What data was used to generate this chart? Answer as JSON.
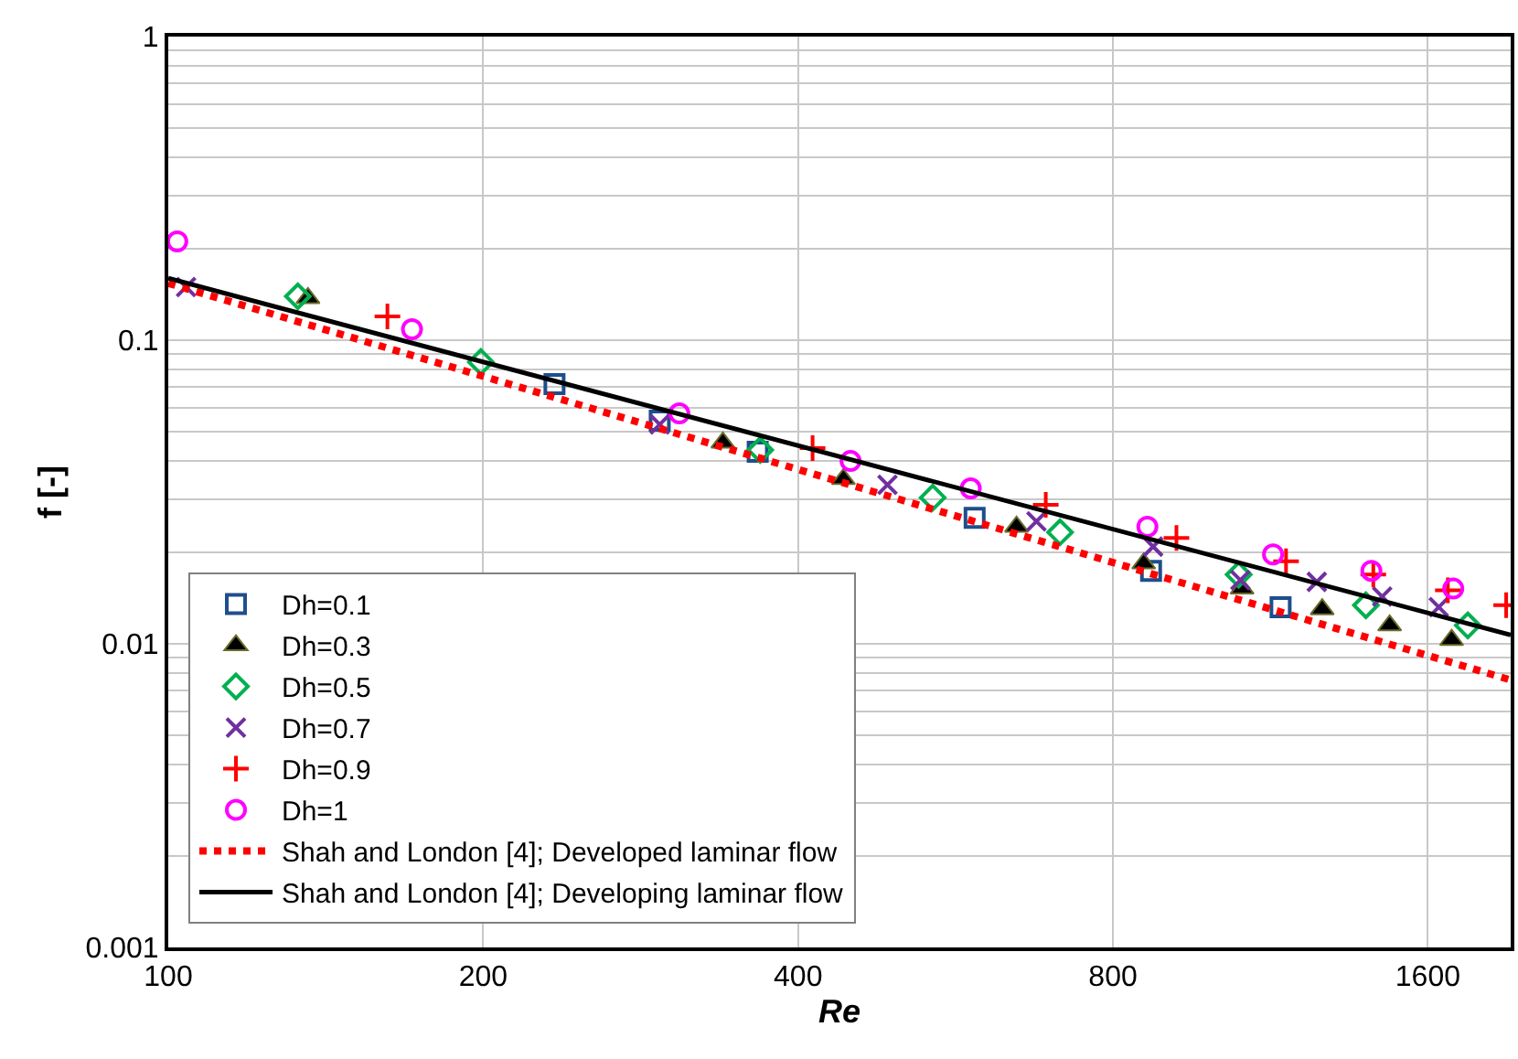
{
  "chart_data": {
    "type": "scatter",
    "xlabel": "Re",
    "ylabel": "f [-]",
    "log": "xy",
    "grid": true,
    "legend": "bottom left",
    "xlim": [
      100,
      1920
    ],
    "xticks": [
      100,
      200,
      400,
      800,
      1600
    ],
    "ylim": [
      0.001,
      1
    ],
    "yticks": [
      0.001,
      {
        "value": 0.002,
        "label": null
      },
      {
        "value": 0.003,
        "label": null
      },
      {
        "value": 0.004,
        "label": null
      },
      {
        "value": 0.005,
        "label": null
      },
      {
        "value": 0.006,
        "label": null
      },
      {
        "value": 0.007,
        "label": null
      },
      {
        "value": 0.008,
        "label": null
      },
      {
        "value": 0.009,
        "label": null
      },
      0.01,
      {
        "value": 0.02,
        "label": null
      },
      {
        "value": 0.03,
        "label": null
      },
      {
        "value": 0.04,
        "label": null
      },
      {
        "value": 0.05,
        "label": null
      },
      {
        "value": 0.06,
        "label": null
      },
      {
        "value": 0.07,
        "label": null
      },
      {
        "value": 0.08,
        "label": null
      },
      {
        "value": 0.09,
        "label": null
      },
      0.1,
      {
        "value": 0.2,
        "label": null
      },
      {
        "value": 0.3,
        "label": null
      },
      {
        "value": 0.4,
        "label": null
      },
      {
        "value": 0.5,
        "label": null
      },
      {
        "value": 0.6,
        "label": null
      },
      {
        "value": 0.7,
        "label": null
      },
      {
        "value": 0.8,
        "label": null
      },
      {
        "value": 0.9,
        "label": null
      },
      1
    ],
    "series": [
      {
        "name": "Dh=0.1",
        "color": "#1f4e8c",
        "marker": "square",
        "x": [
          234,
          295,
          366,
          590,
          870,
          1157
        ],
        "values": [
          0.0717,
          0.0543,
          0.0429,
          0.026,
          0.0174,
          0.0132
        ]
      },
      {
        "name": "Dh=0.3",
        "color": "#000000",
        "marker": "triangle",
        "x": [
          136,
          339,
          442,
          647,
          856,
          1063,
          1268,
          1471,
          1686
        ],
        "values": [
          0.1377,
          0.046,
          0.0349,
          0.0243,
          0.0184,
          0.0152,
          0.013,
          0.0115,
          0.0103
        ]
      },
      {
        "name": "Dh=0.5",
        "color": "#00b050",
        "marker": "diamond",
        "x": [
          133,
          199,
          368,
          538,
          712,
          1055,
          1396,
          1747
        ],
        "values": [
          0.1395,
          0.0847,
          0.0435,
          0.0303,
          0.0233,
          0.0169,
          0.0134,
          0.0115
        ]
      },
      {
        "name": "Dh=0.7",
        "color": "#7030a0",
        "marker": "x",
        "x": [
          104,
          295,
          487,
          676,
          874,
          1059,
          1253,
          1447,
          1639
        ],
        "values": [
          0.1496,
          0.0528,
          0.0334,
          0.0253,
          0.0209,
          0.0162,
          0.016,
          0.0143,
          0.0132
        ]
      },
      {
        "name": "Dh=0.9",
        "color": "#ff0000",
        "marker": "plus",
        "x": [
          162,
          413,
          690,
          920,
          1171,
          1419,
          1672,
          1901
        ],
        "values": [
          0.1197,
          0.0441,
          0.0287,
          0.0223,
          0.0187,
          0.0169,
          0.015,
          0.0134
        ]
      },
      {
        "name": "Dh=1",
        "color": "#ff00ff",
        "marker": "circle",
        "x": [
          102,
          171,
          308,
          449,
          585,
          863,
          1138,
          1413,
          1692
        ],
        "values": [
          0.2115,
          0.1087,
          0.0574,
          0.04,
          0.0325,
          0.0243,
          0.0197,
          0.0174,
          0.0152
        ]
      },
      {
        "name": "Shah and London [4]; Developed laminar flow",
        "type": "line",
        "color": "#ff0000",
        "line_style": "dotted",
        "x": [
          100,
          1920
        ],
        "values": [
          0.154,
          0.0076
        ]
      },
      {
        "name": "Shah and London [4]; Developing laminar flow",
        "type": "line",
        "color": "#000000",
        "line_style": "solid",
        "x": [
          100,
          1920
        ],
        "values": [
          0.16,
          0.0107
        ]
      }
    ]
  }
}
